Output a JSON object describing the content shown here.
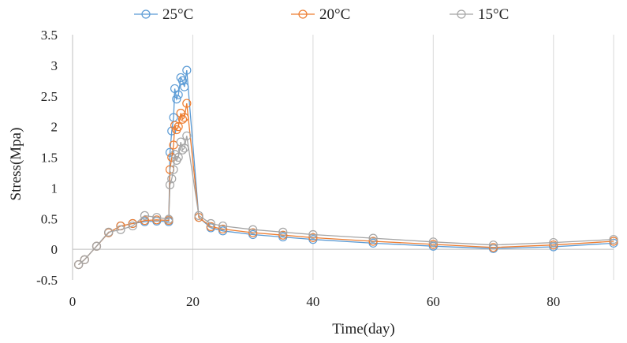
{
  "chart_data": {
    "type": "line",
    "xlabel": "Time(day)",
    "ylabel": "Stress(Mpa)",
    "xlim": [
      0,
      90
    ],
    "ylim": [
      -0.5,
      3.5
    ],
    "x_ticks": [
      0,
      20,
      40,
      60,
      80
    ],
    "y_ticks": [
      -0.5,
      0,
      0.5,
      1,
      1.5,
      2,
      2.5,
      3,
      3.5
    ],
    "grid": "vertical",
    "legend_position": "top",
    "series": [
      {
        "name": "25°C",
        "color": "#5B9BD5",
        "x": [
          1,
          2,
          4,
          6,
          8,
          10,
          12,
          14,
          16,
          16.2,
          16.5,
          16.8,
          17,
          17.3,
          17.6,
          18,
          18.3,
          18.6,
          19,
          21,
          23,
          25,
          30,
          35,
          40,
          50,
          60,
          70,
          80,
          90
        ],
        "y": [
          -0.25,
          -0.17,
          0.05,
          0.27,
          0.38,
          0.42,
          0.45,
          0.46,
          0.45,
          1.58,
          1.93,
          2.15,
          2.62,
          2.45,
          2.52,
          2.8,
          2.75,
          2.65,
          2.92,
          0.52,
          0.35,
          0.3,
          0.24,
          0.2,
          0.16,
          0.1,
          0.05,
          0.01,
          0.04,
          0.1
        ]
      },
      {
        "name": "20°C",
        "color": "#ED7D31",
        "x": [
          1,
          2,
          4,
          6,
          8,
          10,
          12,
          14,
          16,
          16.2,
          16.5,
          16.8,
          17,
          17.3,
          17.6,
          18,
          18.3,
          18.6,
          19,
          21,
          23,
          25,
          30,
          35,
          40,
          50,
          60,
          70,
          80,
          90
        ],
        "y": [
          -0.25,
          -0.17,
          0.05,
          0.27,
          0.38,
          0.42,
          0.47,
          0.48,
          0.47,
          1.3,
          1.5,
          1.7,
          2.02,
          1.95,
          2.0,
          2.22,
          2.12,
          2.15,
          2.38,
          0.52,
          0.37,
          0.33,
          0.27,
          0.23,
          0.19,
          0.13,
          0.08,
          0.03,
          0.07,
          0.13
        ]
      },
      {
        "name": "15°C",
        "color": "#A5A5A5",
        "x": [
          1,
          2,
          4,
          6,
          8,
          10,
          12,
          14,
          16,
          16.2,
          16.5,
          16.8,
          17,
          17.3,
          17.6,
          18,
          18.3,
          18.6,
          19,
          21,
          23,
          25,
          30,
          35,
          40,
          50,
          60,
          70,
          80,
          90
        ],
        "y": [
          -0.25,
          -0.17,
          0.05,
          0.28,
          0.32,
          0.38,
          0.55,
          0.52,
          0.49,
          1.05,
          1.15,
          1.3,
          1.55,
          1.45,
          1.5,
          1.75,
          1.62,
          1.65,
          1.85,
          0.55,
          0.42,
          0.38,
          0.32,
          0.28,
          0.24,
          0.18,
          0.12,
          0.07,
          0.11,
          0.16
        ]
      }
    ]
  }
}
